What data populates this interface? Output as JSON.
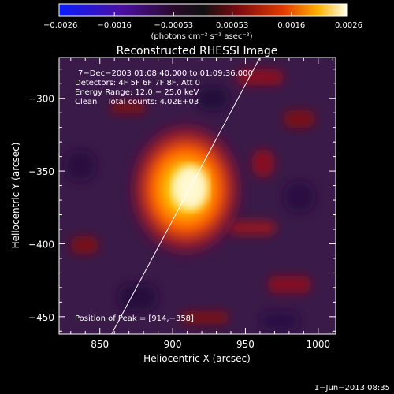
{
  "chart_data": {
    "type": "heatmap",
    "title": "Reconstructed RHESSI Image",
    "xlabel": "Heliocentric X (arcsec)",
    "ylabel": "Heliocentric Y (arcsec)",
    "xlim": [
      822,
      1012
    ],
    "ylim": [
      -462,
      -272
    ],
    "x_ticks": [
      850,
      900,
      950,
      1000
    ],
    "x_tick_labels": [
      "850",
      "900",
      "950",
      "1000"
    ],
    "y_ticks": [
      -300,
      -350,
      -400,
      -450
    ],
    "y_tick_labels": [
      "−300",
      "−350",
      "−400",
      "−450"
    ],
    "colorbar": {
      "range": [
        -0.0026,
        0.0026
      ],
      "ticks": [
        -0.0026,
        -0.0016,
        -0.00053,
        0.00053,
        0.0016,
        0.0026
      ],
      "tick_labels": [
        "−0.0026",
        "−0.0016",
        "−0.00053",
        "0.00053",
        "0.0016",
        "0.0026"
      ],
      "unit_label": "(photons cm⁻² s⁻¹ asec⁻²)"
    },
    "annotations": [
      "7−Dec−2003 01:08:40.000 to 01:09:36.000",
      "Detectors: 4F 5F 6F 7F 8F, Att 0",
      "Energy Range: 12.0 − 25.0 keV",
      "Clean    Total counts: 4.02E+03"
    ],
    "peak": {
      "label": "Position of Peak = [914,−358]",
      "x": 914,
      "y": -358
    },
    "limb_line": [
      [
        858,
        -462
      ],
      [
        960,
        -272
      ]
    ],
    "grid": false
  },
  "footer": {
    "timestamp": "1−Jun−2013 08:35"
  }
}
